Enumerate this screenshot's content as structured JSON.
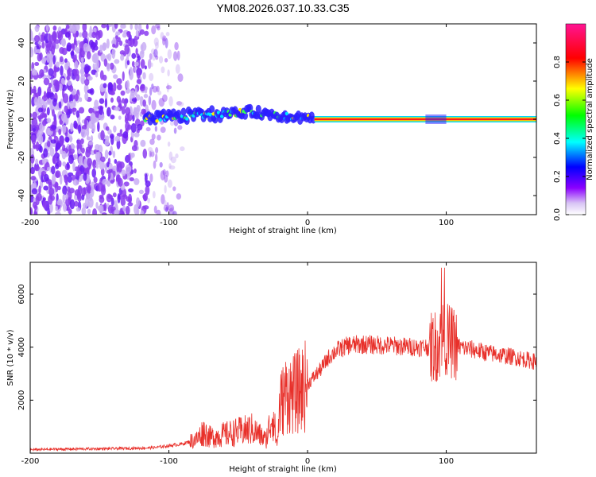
{
  "chart_data": [
    {
      "type": "heatmap",
      "title": "YM08.2026.037.10.33.C35",
      "xlabel": "Height of straight line (km)",
      "ylabel": "Frequency (Hz)",
      "xlim": [
        -200,
        165
      ],
      "ylim": [
        -50,
        50
      ],
      "x_ticks": [
        -200,
        -100,
        0,
        100
      ],
      "x_tick_labels": [
        "-200",
        "-100",
        "0",
        "100"
      ],
      "y_ticks": [
        -40,
        -20,
        0,
        20,
        40
      ],
      "y_tick_labels": [
        "-40",
        "-20",
        "0",
        "20",
        "40"
      ],
      "colorbar": {
        "label": "Normalized spectral amplitude",
        "range": [
          0.0,
          1.0
        ],
        "ticks": [
          0.0,
          0.2,
          0.4,
          0.6,
          0.8
        ],
        "tick_labels": [
          "0.0",
          "0.2",
          "0.4",
          "0.6",
          "0.8"
        ],
        "colors": [
          "#ffffff",
          "#8b00ff",
          "#0000ff",
          "#00ffff",
          "#00ff00",
          "#ffff00",
          "#ff0000",
          "#ff1493"
        ]
      },
      "features": {
        "noise_region_x": [
          -200,
          -90
        ],
        "signal_onset_x": -117,
        "signal_line_freq_hz": 0,
        "strong_line_start_x": 5
      }
    },
    {
      "type": "line",
      "xlabel": "Height of straight line (km)",
      "ylabel": "SNR (10 * v/v)",
      "xlim": [
        -200,
        165
      ],
      "ylim": [
        0,
        7200
      ],
      "x_ticks": [
        -200,
        -100,
        0,
        100
      ],
      "x_tick_labels": [
        "-200",
        "-100",
        "0",
        "100"
      ],
      "y_ticks": [
        2000,
        4000,
        6000
      ],
      "y_tick_labels": [
        "2000",
        "4000",
        "6000"
      ],
      "series": [
        {
          "name": "SNR",
          "color": "#e8302a",
          "x": [
            -200,
            -180,
            -160,
            -140,
            -120,
            -110,
            -100,
            -90,
            -80,
            -75,
            -70,
            -60,
            -50,
            -40,
            -35,
            -30,
            -25,
            -22,
            -20,
            -15,
            -10,
            -5,
            0,
            5,
            10,
            15,
            20,
            30,
            40,
            50,
            60,
            70,
            80,
            90,
            95,
            98,
            100,
            105,
            110,
            120,
            130,
            140,
            150,
            160,
            165
          ],
          "y": [
            130,
            150,
            160,
            170,
            190,
            210,
            280,
            350,
            520,
            820,
            600,
            700,
            800,
            900,
            700,
            500,
            1500,
            300,
            1800,
            2300,
            2200,
            2400,
            2600,
            2900,
            3200,
            3600,
            3850,
            4080,
            4100,
            4080,
            4060,
            4020,
            4000,
            4020,
            4100,
            4500,
            4300,
            4150,
            4000,
            3900,
            3780,
            3700,
            3620,
            3500,
            3450
          ]
        }
      ]
    }
  ]
}
